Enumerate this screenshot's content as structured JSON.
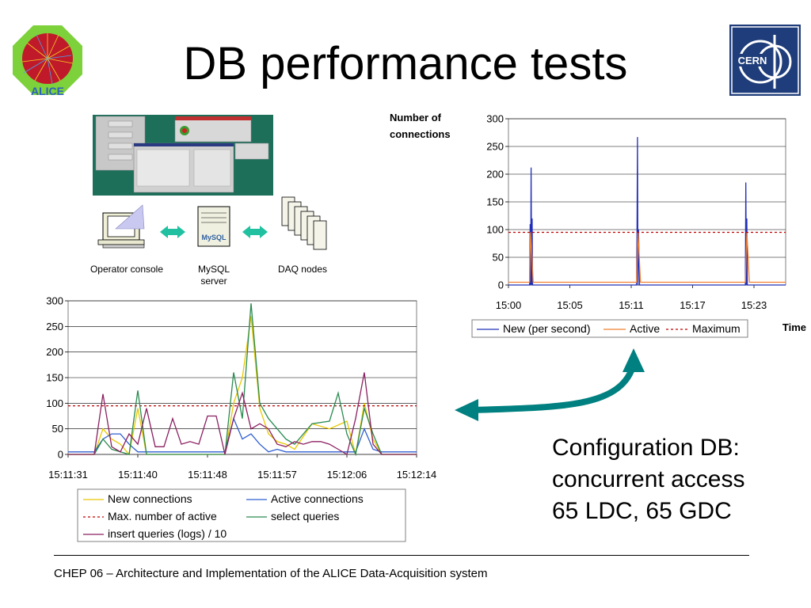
{
  "slide": {
    "title": "DB performance tests",
    "footer": "CHEP 06 – Architecture and Implementation of the ALICE Data-Acquisition system",
    "logo_left_text": "ALICE",
    "logo_right_text": "CERN",
    "diagram": {
      "console_label": "Operator console",
      "mysql_label": [
        "MySQL",
        "server"
      ],
      "daq_label": "DAQ nodes"
    },
    "config_text": [
      "Configuration DB:",
      "concurrent access",
      "65 LDC, 65 GDC"
    ],
    "colors": {
      "arrow": "#008080",
      "new": "#2230b8",
      "active": "#f08030",
      "maximum": "#c00000",
      "select": "#2a8a50",
      "insert": "#8b2060",
      "newconn": "#e8c800",
      "activeconn": "#2f5fd0"
    }
  },
  "chart_data": [
    {
      "type": "line",
      "ylabel": "Number of connections",
      "xlabel": "Time",
      "ylim": [
        0,
        300
      ],
      "yticks": [
        "0",
        "50",
        "100",
        "150",
        "200",
        "250",
        "300"
      ],
      "xticks": [
        "15:00",
        "15:05",
        "15:11",
        "15:17",
        "15:23"
      ],
      "legend": "bottom",
      "series": [
        {
          "name": "New (per second)",
          "x": [
            0,
            2.1,
            2.15,
            2.2,
            2.25,
            2.3,
            2.35,
            2.4,
            2.5,
            12.7,
            12.75,
            12.8,
            12.85,
            12.9,
            13.0,
            23.5,
            23.55,
            23.6,
            23.65,
            23.7,
            23.8,
            27.5
          ],
          "values": [
            0,
            0,
            110,
            0,
            212,
            0,
            120,
            0,
            0,
            0,
            90,
            267,
            0,
            100,
            0,
            0,
            185,
            0,
            120,
            0,
            0,
            0
          ]
        },
        {
          "name": "Active",
          "x": [
            0,
            2.1,
            2.2,
            2.3,
            2.45,
            12.7,
            12.85,
            12.95,
            13.1,
            23.5,
            23.65,
            23.75,
            23.9,
            27.5
          ],
          "values": [
            5,
            5,
            95,
            60,
            5,
            5,
            95,
            60,
            5,
            5,
            95,
            60,
            5,
            5
          ]
        },
        {
          "name": "Maximum",
          "x": [
            0,
            27.5
          ],
          "values": [
            95,
            95
          ]
        }
      ]
    },
    {
      "type": "line",
      "ylim": [
        0,
        300
      ],
      "yticks": [
        "0",
        "50",
        "100",
        "150",
        "200",
        "250",
        "300"
      ],
      "xticks": [
        "15:11:31",
        "15:11:40",
        "15:11:48",
        "15:11:57",
        "15:12:06",
        "15:12:14"
      ],
      "legend": "bottom",
      "series": [
        {
          "name": "New connections",
          "x": [
            0,
            3,
            4,
            5,
            6,
            7,
            8,
            9,
            10,
            15,
            18,
            19,
            20,
            21,
            22,
            23,
            24,
            25,
            26,
            28,
            30,
            32,
            33,
            34,
            35,
            36,
            40
          ],
          "values": [
            0,
            0,
            50,
            30,
            20,
            0,
            90,
            0,
            0,
            0,
            0,
            100,
            150,
            270,
            90,
            40,
            25,
            20,
            10,
            60,
            50,
            65,
            0,
            100,
            30,
            0,
            0
          ]
        },
        {
          "name": "Active connections",
          "x": [
            0,
            3,
            4,
            5,
            6,
            7,
            8,
            18,
            19,
            20,
            21,
            22,
            23,
            24,
            25,
            26,
            28,
            30,
            32,
            33,
            34,
            35,
            36,
            40
          ],
          "values": [
            5,
            5,
            30,
            40,
            40,
            20,
            5,
            5,
            70,
            30,
            40,
            20,
            5,
            10,
            5,
            5,
            5,
            5,
            5,
            5,
            50,
            10,
            5,
            5
          ]
        },
        {
          "name": "Max. number of active",
          "x": [
            0,
            40
          ],
          "values": [
            95,
            95
          ]
        },
        {
          "name": "select queries",
          "x": [
            0,
            3,
            4,
            5,
            6,
            7,
            8,
            9,
            10,
            15,
            18,
            19,
            20,
            21,
            22,
            23,
            24,
            25,
            26,
            28,
            30,
            31,
            32,
            33,
            34,
            35,
            36,
            40
          ],
          "values": [
            0,
            0,
            30,
            10,
            5,
            0,
            125,
            0,
            0,
            0,
            0,
            160,
            70,
            295,
            100,
            70,
            50,
            30,
            20,
            60,
            65,
            120,
            40,
            0,
            90,
            40,
            0,
            0
          ]
        },
        {
          "name": "insert queries (logs) / 10",
          "x": [
            0,
            3,
            4,
            5,
            6,
            7,
            8,
            9,
            10,
            11,
            12,
            13,
            14,
            15,
            16,
            17,
            18,
            19,
            20,
            21,
            22,
            23,
            24,
            25,
            26,
            27,
            28,
            29,
            30,
            31,
            32,
            33,
            34,
            35,
            36,
            37,
            40
          ],
          "values": [
            0,
            0,
            118,
            15,
            5,
            40,
            20,
            90,
            15,
            15,
            70,
            20,
            25,
            20,
            75,
            75,
            0,
            70,
            120,
            50,
            60,
            50,
            20,
            15,
            25,
            20,
            25,
            25,
            20,
            10,
            0,
            70,
            160,
            20,
            0,
            0,
            0
          ]
        }
      ]
    }
  ]
}
